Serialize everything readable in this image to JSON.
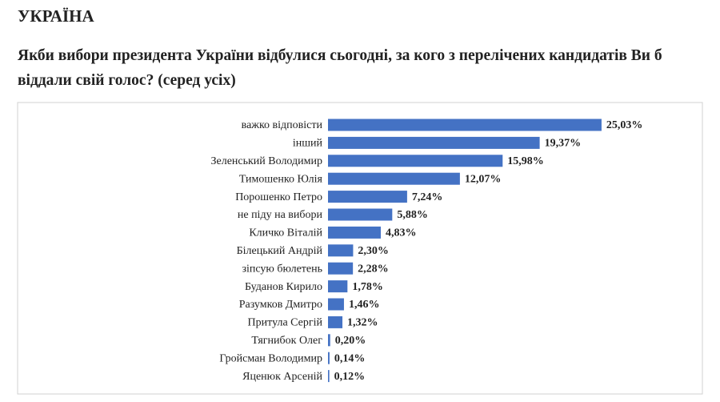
{
  "chart_data": {
    "type": "bar",
    "orientation": "horizontal",
    "title": "УКРАЇНА",
    "subtitle": "Якби вибори президента України відбулися сьогодні, за кого з перелічених кандидатів Ви б віддали свій голос? (серед усіх)",
    "categories": [
      "важко відповісти",
      "інший",
      "Зеленський Володимир",
      "Тимошенко Юлія",
      "Порошенко Петро",
      "не піду на вибори",
      "Кличко Віталій",
      "Білецький Андрій",
      "зіпсую бюлетень",
      "Буданов Кирило",
      "Разумков Дмитро",
      "Притула Сергій",
      "Тягнибок Олег",
      "Гройсман Володимир",
      "Яценюк Арсеній"
    ],
    "values": [
      25.03,
      19.37,
      15.98,
      12.07,
      7.24,
      5.88,
      4.83,
      2.3,
      2.28,
      1.78,
      1.46,
      1.32,
      0.2,
      0.14,
      0.12
    ],
    "value_labels": [
      "25,03%",
      "19,37%",
      "15,98%",
      "12,07%",
      "7,24%",
      "5,88%",
      "4,83%",
      "2,30%",
      "2,28%",
      "1,78%",
      "1,46%",
      "1,32%",
      "0,20%",
      "0,14%",
      "0,12%"
    ],
    "color": "#4472c4"
  }
}
